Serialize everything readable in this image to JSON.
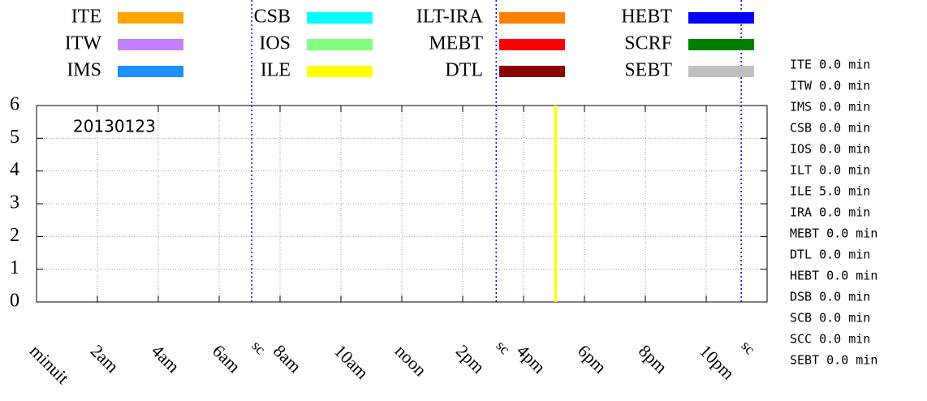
{
  "chart_data": {
    "type": "timeline",
    "annotation": "20130123",
    "xlim": [
      0,
      24
    ],
    "xticks": [
      {
        "value": 0,
        "label": "minuit"
      },
      {
        "value": 2,
        "label": "2am"
      },
      {
        "value": 4,
        "label": "4am"
      },
      {
        "value": 6,
        "label": "6am"
      },
      {
        "value": 8,
        "label": "8am"
      },
      {
        "value": 10,
        "label": "10am"
      },
      {
        "value": 12,
        "label": "noon"
      },
      {
        "value": 14,
        "label": "2pm"
      },
      {
        "value": 16,
        "label": "4pm"
      },
      {
        "value": 18,
        "label": "6pm"
      },
      {
        "value": 20,
        "label": "8pm"
      },
      {
        "value": 22,
        "label": "10pm"
      }
    ],
    "ylim": [
      0,
      6
    ],
    "yticks": [
      0,
      1,
      2,
      3,
      4,
      5,
      6
    ],
    "grid": true,
    "series": [
      {
        "name": "ITE",
        "color": "#ffa500"
      },
      {
        "name": "ITW",
        "color": "#c080ff"
      },
      {
        "name": "IMS",
        "color": "#1e90ff"
      },
      {
        "name": "CSB",
        "color": "#00ffff"
      },
      {
        "name": "IOS",
        "color": "#80ff80"
      },
      {
        "name": "ILE",
        "color": "#ffff00",
        "x": [
          17.05
        ],
        "values": [
          6
        ]
      },
      {
        "name": "ILT-IRA",
        "color": "#ff8000"
      },
      {
        "name": "MEBT",
        "color": "#ff0000"
      },
      {
        "name": "DTL",
        "color": "#8b0000"
      },
      {
        "name": "HEBT",
        "color": "#0000ff"
      },
      {
        "name": "SCRF",
        "color": "#008000"
      },
      {
        "name": "SEBT",
        "color": "#c0c0c0"
      }
    ],
    "markers": {
      "label": "sc",
      "color": "#0000ff",
      "x": [
        7.07,
        15.1,
        23.15
      ]
    },
    "summary": [
      "ITE 0.0 min",
      "ITW 0.0 min",
      "IMS 0.0 min",
      "CSB 0.0 min",
      "IOS 0.0 min",
      "ILT 0.0 min",
      "ILE 5.0 min",
      "IRA 0.0 min",
      "MEBT 0.0 min",
      "DTL 0.0 min",
      "HEBT 0.0 min",
      "DSB 0.0 min",
      "SCB 0.0 min",
      "SCC 0.0 min",
      "SEBT 0.0 min"
    ]
  }
}
